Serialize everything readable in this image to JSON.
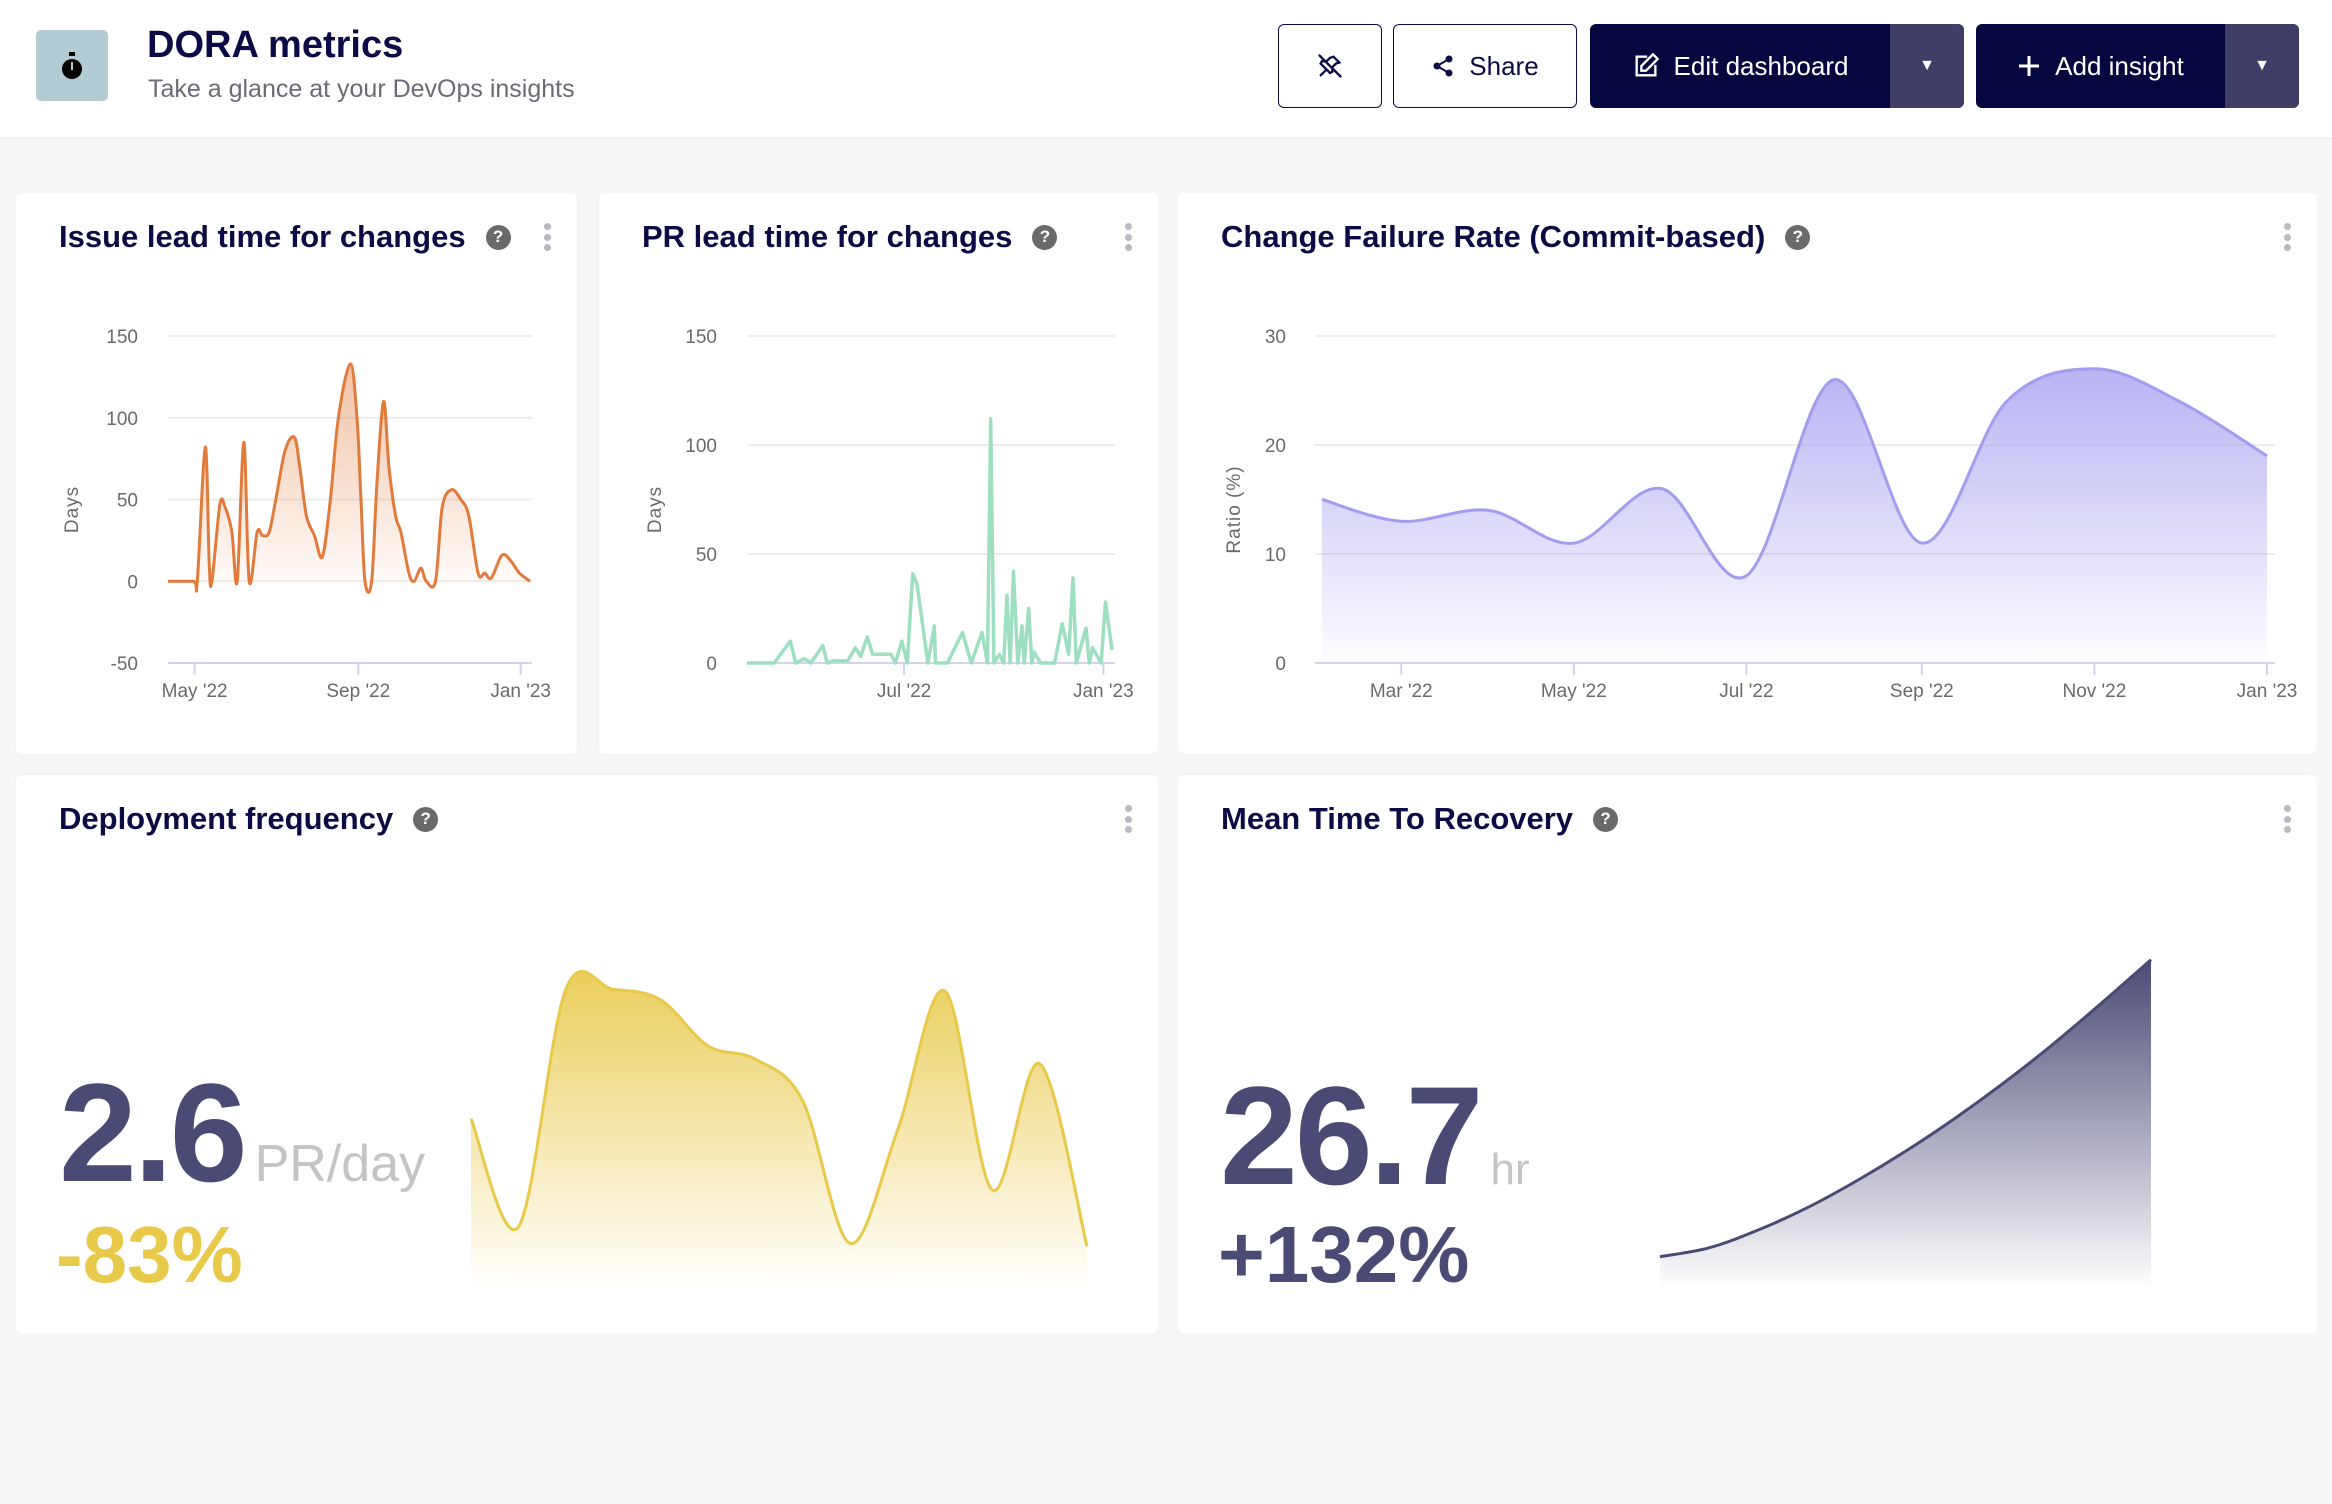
{
  "header": {
    "icon": "stopwatch-icon",
    "title": "DORA metrics",
    "subtitle": "Take a glance at your DevOps insights",
    "pin_icon": "unpin-icon",
    "share_label": "Share",
    "edit_label": "Edit dashboard",
    "add_label": "Add insight"
  },
  "colors": {
    "navy": "#0d0b45",
    "button_dark": "#07073f",
    "issue_line": "#e07b3c",
    "pr_line": "#9edfc2",
    "cfr_line": "#a39cef",
    "deploy_line": "#e8c94a",
    "mttr_line": "#4b4a75"
  },
  "cards": {
    "issue": {
      "title": "Issue lead time for changes"
    },
    "pr": {
      "title": "PR lead time for changes"
    },
    "cfr": {
      "title": "Change Failure Rate (Commit-based)"
    },
    "deploy": {
      "title": "Deployment frequency",
      "value": "2.6",
      "unit": "PR/day",
      "delta": "-83%"
    },
    "mttr": {
      "title": "Mean Time To Recovery",
      "value": "26.7",
      "unit": "hr",
      "delta": "+132%"
    }
  },
  "chart_data": [
    {
      "id": "issue",
      "type": "area",
      "ylabel": "Days",
      "ylim": [
        -50,
        150
      ],
      "yticks": [
        150,
        100,
        50,
        0,
        -50
      ],
      "xlim": [
        "2022-04-11",
        "2023-01-08"
      ],
      "xticks": [
        {
          "date": "2022-05-01",
          "label": "May '22"
        },
        {
          "date": "2022-09-01",
          "label": "Sep '22"
        },
        {
          "date": "2023-01-01",
          "label": "Jan '23"
        }
      ],
      "grid": true,
      "x": [
        "2022-04-11",
        "2022-04-30",
        "2022-05-03",
        "2022-05-09",
        "2022-05-12",
        "2022-05-14",
        "2022-05-20",
        "2022-05-24",
        "2022-05-29",
        "2022-06-02",
        "2022-06-07",
        "2022-06-11",
        "2022-06-17",
        "2022-06-21",
        "2022-06-26",
        "2022-07-01",
        "2022-07-08",
        "2022-07-15",
        "2022-07-19",
        "2022-07-24",
        "2022-07-30",
        "2022-08-05",
        "2022-08-11",
        "2022-08-17",
        "2022-08-26",
        "2022-08-31",
        "2022-09-03",
        "2022-09-06",
        "2022-09-11",
        "2022-09-15",
        "2022-09-20",
        "2022-09-24",
        "2022-09-29",
        "2022-10-03",
        "2022-10-09",
        "2022-10-13",
        "2022-10-18",
        "2022-10-22",
        "2022-10-29",
        "2022-11-03",
        "2022-11-10",
        "2022-11-17",
        "2022-11-23",
        "2022-11-30",
        "2022-12-05",
        "2022-12-10",
        "2022-12-18",
        "2022-12-25",
        "2022-12-31",
        "2023-01-08"
      ],
      "y": [
        0,
        0,
        0,
        82,
        10,
        0,
        47,
        45,
        30,
        0,
        85,
        0,
        30,
        28,
        30,
        50,
        80,
        88,
        70,
        40,
        28,
        15,
        50,
        100,
        133,
        100,
        50,
        0,
        0,
        60,
        110,
        70,
        40,
        30,
        5,
        0,
        8,
        0,
        0,
        45,
        56,
        50,
        40,
        5,
        5,
        2,
        16,
        12,
        5,
        0
      ]
    },
    {
      "id": "pr",
      "type": "line",
      "ylabel": "Days",
      "ylim": [
        0,
        150
      ],
      "yticks": [
        150,
        100,
        50,
        0
      ],
      "xlim": [
        "2022-02-06",
        "2023-01-09"
      ],
      "xticks": [
        {
          "date": "2022-07-01",
          "label": "Jul '22"
        },
        {
          "date": "2023-01-01",
          "label": "Jan '23"
        }
      ],
      "grid": true,
      "x": [
        "2022-02-06",
        "2022-03-03",
        "2022-03-18",
        "2022-03-23",
        "2022-03-31",
        "2022-04-06",
        "2022-04-17",
        "2022-04-21",
        "2022-04-27",
        "2022-05-10",
        "2022-05-17",
        "2022-05-22",
        "2022-05-28",
        "2022-06-02",
        "2022-06-09",
        "2022-06-19",
        "2022-06-23",
        "2022-06-29",
        "2022-07-04",
        "2022-07-09",
        "2022-07-13",
        "2022-07-23",
        "2022-07-29",
        "2022-07-30",
        "2022-08-10",
        "2022-08-24",
        "2022-09-01",
        "2022-09-11",
        "2022-09-16",
        "2022-09-19",
        "2022-09-22",
        "2022-09-27",
        "2022-10-01",
        "2022-10-04",
        "2022-10-07",
        "2022-10-10",
        "2022-10-14",
        "2022-10-18",
        "2022-10-20",
        "2022-10-24",
        "2022-10-27",
        "2022-10-29",
        "2022-11-04",
        "2022-11-17",
        "2022-11-24",
        "2022-11-30",
        "2022-12-04",
        "2022-12-07",
        "2022-12-16",
        "2022-12-19",
        "2022-12-22",
        "2022-12-30",
        "2023-01-03",
        "2023-01-09"
      ],
      "y": [
        0,
        0,
        10,
        0,
        2,
        0,
        8,
        0,
        1,
        1,
        7,
        3,
        12,
        4,
        4,
        4,
        0,
        10,
        0,
        41,
        36,
        0,
        17,
        0,
        0,
        14,
        0,
        14,
        0,
        112,
        0,
        4,
        0,
        31,
        0,
        42,
        0,
        17,
        0,
        25,
        0,
        5,
        0,
        0,
        18,
        4,
        39,
        0,
        16,
        0,
        7,
        0,
        28,
        6
      ]
    },
    {
      "id": "cfr",
      "type": "area",
      "ylabel": "Ratio (%)",
      "ylim": [
        0,
        30
      ],
      "yticks": [
        30,
        20,
        10,
        0
      ],
      "xlim": [
        "2022-02-01",
        "2023-01-01"
      ],
      "xticks": [
        {
          "date": "2022-03-01",
          "label": "Mar '22"
        },
        {
          "date": "2022-05-01",
          "label": "May '22"
        },
        {
          "date": "2022-07-01",
          "label": "Jul '22"
        },
        {
          "date": "2022-09-01",
          "label": "Sep '22"
        },
        {
          "date": "2022-11-01",
          "label": "Nov '22"
        },
        {
          "date": "2023-01-01",
          "label": "Jan '23"
        }
      ],
      "grid": true,
      "x": [
        "2022-02-01",
        "2022-03-01",
        "2022-04-01",
        "2022-05-01",
        "2022-06-01",
        "2022-07-01",
        "2022-08-01",
        "2022-09-01",
        "2022-10-01",
        "2022-11-01",
        "2022-12-01",
        "2023-01-01"
      ],
      "y": [
        15,
        13,
        14,
        11,
        16,
        8,
        26,
        11,
        24,
        27,
        24,
        19
      ]
    },
    {
      "id": "deploy",
      "type": "area",
      "grid": false,
      "values": [
        108,
        35,
        195,
        195,
        188,
        157,
        148,
        120,
        24,
        100,
        194,
        60,
        145,
        22
      ]
    },
    {
      "id": "mttr",
      "type": "area",
      "grid": false,
      "values": [
        15,
        21,
        33,
        48,
        66,
        86,
        108,
        132,
        158,
        186,
        215
      ]
    }
  ]
}
